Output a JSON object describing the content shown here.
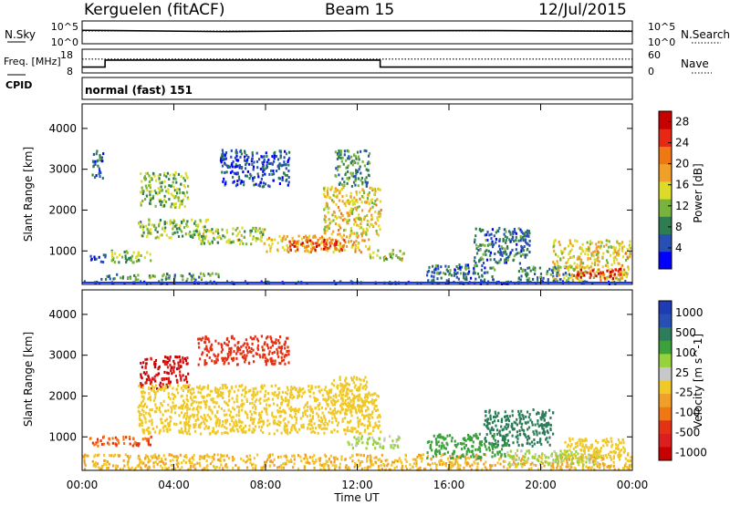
{
  "header": {
    "station": "Kerguelen (fitACF)",
    "beam": "Beam 15",
    "date": "12/Jul/2015"
  },
  "colors": {
    "power_scale": [
      "#0000ff",
      "#2850b4",
      "#2d7d50",
      "#78b43c",
      "#dcdc28",
      "#f0a028",
      "#f07814",
      "#e62814",
      "#c80000"
    ],
    "velocity_scale": [
      "#1e3cb4",
      "#2850b4",
      "#2d7d5a",
      "#3ca03c",
      "#96d23c",
      "#c8c8c8",
      "#f0c828",
      "#f0a028",
      "#f07814",
      "#e63214",
      "#dc1e1e",
      "#c80000"
    ]
  },
  "chart_data": [
    {
      "type": "line",
      "panel": "nsky-nsearch",
      "left_label": "N.Sky",
      "right_label": "N.Search",
      "left_ticks": [
        "10^5",
        "10^0"
      ],
      "right_ticks": [
        "10^5",
        "10^0"
      ],
      "series": [
        {
          "name": "N.Sky",
          "style": "solid",
          "x": [
            "00:00",
            "06:00",
            "12:00",
            "18:00",
            "24:00"
          ],
          "y": [
            100000,
            100000,
            100000,
            100000,
            100000
          ]
        },
        {
          "name": "N.Search",
          "style": "dotted",
          "x": [
            "00:00",
            "24:00"
          ],
          "y": [
            100000,
            100000
          ]
        }
      ]
    },
    {
      "type": "line",
      "panel": "freq-nave",
      "left_label": "Freq. [MHz]",
      "right_label": "Nave",
      "left_ticks": [
        18,
        8
      ],
      "right_ticks": [
        60,
        0
      ],
      "cpid_label": "CPID",
      "cpid_text": "normal (fast) 151",
      "series": [
        {
          "name": "Freq",
          "style": "solid",
          "x": [
            "00:00",
            "01:00",
            "01:00",
            "13:00",
            "13:00",
            "24:00"
          ],
          "y": [
            10,
            10,
            13.5,
            13.5,
            10,
            10
          ]
        },
        {
          "name": "Nave",
          "style": "dotted",
          "x": [
            "00:00",
            "24:00"
          ],
          "y": [
            36,
            36
          ]
        }
      ]
    },
    {
      "type": "heatmap",
      "panel": "power",
      "ylabel": "Slant Range [km]",
      "y_ticks": [
        1000,
        2000,
        3000,
        4000
      ],
      "ylim": [
        180,
        4600
      ],
      "xlim": [
        "00:00",
        "24:00"
      ],
      "colorbar_label": "Power [dB]",
      "colorbar_ticks": [
        4,
        8,
        12,
        16,
        20,
        24,
        28
      ],
      "colorbar_range": [
        0,
        30
      ],
      "blobs": [
        {
          "t": 0.0,
          "t2": 24.0,
          "r": 200,
          "r2": 290,
          "v": 5
        },
        {
          "t": 0.8,
          "t2": 6.0,
          "r": 320,
          "r2": 480,
          "v": 9
        },
        {
          "t": 0.3,
          "t2": 1.0,
          "r": 750,
          "r2": 950,
          "v": 5
        },
        {
          "t": 1.2,
          "t2": 3.0,
          "r": 750,
          "r2": 1050,
          "v": 12
        },
        {
          "t": 0.4,
          "t2": 0.9,
          "r": 2800,
          "r2": 3500,
          "v": 6
        },
        {
          "t": 2.5,
          "t2": 4.6,
          "r": 2100,
          "r2": 2950,
          "v": 12
        },
        {
          "t": 2.4,
          "t2": 5.5,
          "r": 1350,
          "r2": 1800,
          "v": 11
        },
        {
          "t": 5.0,
          "t2": 8.0,
          "r": 1200,
          "r2": 1600,
          "v": 13
        },
        {
          "t": 8.0,
          "t2": 12.5,
          "r": 1000,
          "r2": 1400,
          "v": 18
        },
        {
          "t": 9.0,
          "t2": 11.5,
          "r": 1050,
          "r2": 1300,
          "v": 24
        },
        {
          "t": 10.5,
          "t2": 13.0,
          "r": 1400,
          "r2": 2600,
          "v": 16
        },
        {
          "t": 11.0,
          "t2": 12.5,
          "r": 2600,
          "r2": 3500,
          "v": 9
        },
        {
          "t": 12.5,
          "t2": 14.0,
          "r": 800,
          "r2": 1050,
          "v": 14
        },
        {
          "t": 6.0,
          "t2": 9.0,
          "r": 2600,
          "r2": 3500,
          "v": 5
        },
        {
          "t": 15.0,
          "t2": 18.0,
          "r": 300,
          "r2": 700,
          "v": 7
        },
        {
          "t": 17.0,
          "t2": 19.5,
          "r": 700,
          "r2": 1600,
          "v": 7
        },
        {
          "t": 19.0,
          "t2": 21.5,
          "r": 300,
          "r2": 650,
          "v": 8
        },
        {
          "t": 20.5,
          "t2": 24.0,
          "r": 300,
          "r2": 1300,
          "v": 16
        },
        {
          "t": 21.5,
          "t2": 23.5,
          "r": 350,
          "r2": 600,
          "v": 26
        }
      ]
    },
    {
      "type": "heatmap",
      "panel": "velocity",
      "ylabel": "Slant Range [km]",
      "y_ticks": [
        1000,
        2000,
        3000,
        4000
      ],
      "ylim": [
        180,
        4600
      ],
      "xlim": [
        "00:00",
        "24:00"
      ],
      "x_ticks": [
        "00:00",
        "04:00",
        "08:00",
        "12:00",
        "16:00",
        "20:00",
        "00:00"
      ],
      "xlabel": "Time UT",
      "colorbar_label": "Velocity [m s^-1]",
      "colorbar_ticks": [
        "1000",
        "500",
        "100",
        "25",
        "-25",
        "-100",
        "-500",
        "-1000"
      ],
      "blobs": [
        {
          "t": 0.0,
          "t2": 24.0,
          "r": 200,
          "r2": 600,
          "v": -25
        },
        {
          "t": 0.3,
          "t2": 3.0,
          "r": 800,
          "r2": 1050,
          "v": -100
        },
        {
          "t": 2.5,
          "t2": 4.6,
          "r": 2200,
          "r2": 3000,
          "v": -500
        },
        {
          "t": 2.4,
          "t2": 13.0,
          "r": 1100,
          "r2": 2300,
          "v": 0
        },
        {
          "t": 10.8,
          "t2": 12.4,
          "r": 1600,
          "r2": 2500,
          "v": 0
        },
        {
          "t": 11.5,
          "t2": 13.8,
          "r": 750,
          "r2": 1050,
          "v": 60
        },
        {
          "t": 5.0,
          "t2": 9.0,
          "r": 2800,
          "r2": 3500,
          "v": -200
        },
        {
          "t": 15.0,
          "t2": 18.5,
          "r": 500,
          "r2": 1100,
          "v": 150
        },
        {
          "t": 17.5,
          "t2": 20.5,
          "r": 800,
          "r2": 1700,
          "v": 400
        },
        {
          "t": 18.5,
          "t2": 22.5,
          "r": 350,
          "r2": 700,
          "v": 60
        },
        {
          "t": 21.0,
          "t2": 24.0,
          "r": 500,
          "r2": 1000,
          "v": 0
        }
      ]
    }
  ]
}
